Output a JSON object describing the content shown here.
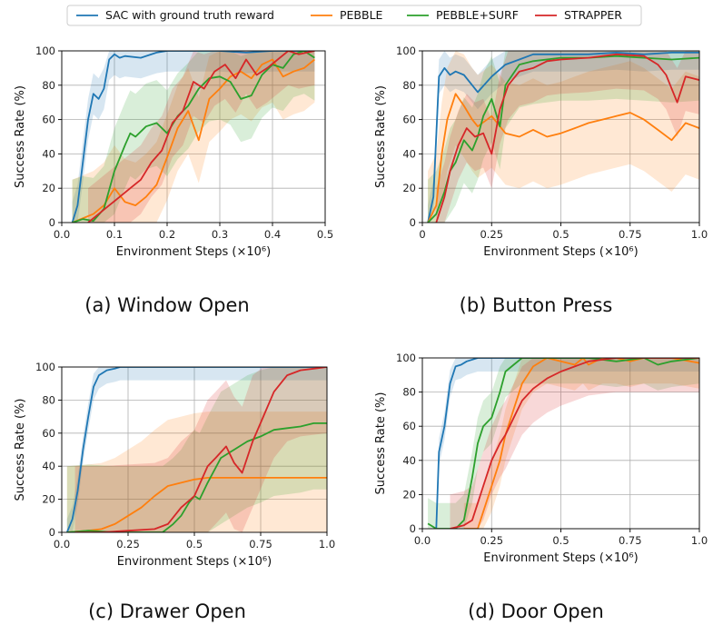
{
  "legend": {
    "items": [
      {
        "label": "SAC with ground truth reward",
        "color": "#1f77b4"
      },
      {
        "label": "PEBBLE",
        "color": "#ff7f0e"
      },
      {
        "label": "PEBBLE+SURF",
        "color": "#2ca02c"
      },
      {
        "label": "STRAPPER",
        "color": "#d62728"
      }
    ]
  },
  "chart_data": [
    {
      "type": "line",
      "caption": "(a) Window Open",
      "xlabel": "Environment Steps (×10⁶)",
      "ylabel": "Success Rate (%)",
      "xlim": [
        0,
        0.5
      ],
      "ylim": [
        0,
        100
      ],
      "xticks": [
        "0.0",
        "0.1",
        "0.2",
        "0.3",
        "0.4",
        "0.5"
      ],
      "xtick_values": [
        0,
        0.1,
        0.2,
        0.3,
        0.4,
        0.5
      ],
      "yticks": [
        "0",
        "20",
        "40",
        "60",
        "80",
        "100"
      ],
      "ytick_values": [
        0,
        20,
        40,
        60,
        80,
        100
      ],
      "grid": true,
      "series": [
        {
          "name": "SAC with ground truth reward",
          "color": "#1f77b4",
          "x": [
            0.02,
            0.03,
            0.04,
            0.05,
            0.06,
            0.07,
            0.08,
            0.09,
            0.1,
            0.11,
            0.12,
            0.15,
            0.18,
            0.2,
            0.25,
            0.3,
            0.35,
            0.4,
            0.45,
            0.48
          ],
          "y": [
            0,
            10,
            35,
            60,
            75,
            72,
            78,
            95,
            98,
            96,
            97,
            96,
            99,
            100,
            100,
            100,
            99,
            100,
            100,
            100
          ],
          "band": 12
        },
        {
          "name": "PEBBLE",
          "color": "#ff7f0e",
          "x": [
            0.02,
            0.06,
            0.08,
            0.1,
            0.12,
            0.14,
            0.16,
            0.18,
            0.2,
            0.22,
            0.24,
            0.26,
            0.28,
            0.3,
            0.32,
            0.34,
            0.36,
            0.38,
            0.4,
            0.42,
            0.44,
            0.46,
            0.48
          ],
          "y": [
            0,
            5,
            10,
            20,
            12,
            10,
            15,
            22,
            38,
            55,
            65,
            48,
            72,
            78,
            85,
            88,
            84,
            92,
            95,
            85,
            88,
            90,
            95
          ],
          "band": 25
        },
        {
          "name": "PEBBLE+SURF",
          "color": "#2ca02c",
          "x": [
            0.02,
            0.04,
            0.06,
            0.08,
            0.1,
            0.12,
            0.13,
            0.14,
            0.16,
            0.18,
            0.2,
            0.22,
            0.24,
            0.26,
            0.28,
            0.3,
            0.32,
            0.34,
            0.36,
            0.38,
            0.4,
            0.42,
            0.44,
            0.46,
            0.48
          ],
          "y": [
            0,
            2,
            1,
            8,
            30,
            45,
            52,
            50,
            56,
            58,
            52,
            62,
            68,
            78,
            84,
            85,
            82,
            72,
            74,
            86,
            92,
            90,
            98,
            100,
            96
          ],
          "band": 25
        },
        {
          "name": "STRAPPER",
          "color": "#d62728",
          "x": [
            0.05,
            0.07,
            0.09,
            0.11,
            0.13,
            0.15,
            0.17,
            0.19,
            0.21,
            0.23,
            0.25,
            0.27,
            0.29,
            0.31,
            0.33,
            0.35,
            0.37,
            0.39,
            0.41,
            0.43,
            0.45,
            0.48
          ],
          "y": [
            0,
            5,
            10,
            15,
            20,
            25,
            35,
            42,
            58,
            65,
            82,
            78,
            88,
            92,
            84,
            95,
            86,
            90,
            95,
            100,
            98,
            100
          ],
          "band": 20
        }
      ]
    },
    {
      "type": "line",
      "caption": "(b) Button Press",
      "xlabel": "Environment Steps (×10⁶)",
      "ylabel": "Success Rate (%)",
      "xlim": [
        0,
        1.0
      ],
      "ylim": [
        0,
        100
      ],
      "xticks": [
        "0",
        "0.25",
        "0.5",
        "0.75",
        "1.0"
      ],
      "xtick_values": [
        0,
        0.25,
        0.5,
        0.75,
        1.0
      ],
      "yticks": [
        "0",
        "20",
        "40",
        "60",
        "80",
        "100"
      ],
      "ytick_values": [
        0,
        20,
        40,
        60,
        80,
        100
      ],
      "grid": true,
      "series": [
        {
          "name": "SAC with ground truth reward",
          "color": "#1f77b4",
          "x": [
            0.02,
            0.04,
            0.06,
            0.08,
            0.1,
            0.12,
            0.15,
            0.18,
            0.2,
            0.25,
            0.3,
            0.35,
            0.4,
            0.5,
            0.6,
            0.7,
            0.8,
            0.9,
            1.0
          ],
          "y": [
            0,
            15,
            85,
            90,
            86,
            88,
            86,
            80,
            76,
            85,
            92,
            95,
            98,
            98,
            98,
            99,
            98,
            99,
            99
          ],
          "band": 10
        },
        {
          "name": "PEBBLE",
          "color": "#ff7f0e",
          "x": [
            0.02,
            0.05,
            0.07,
            0.09,
            0.12,
            0.15,
            0.18,
            0.2,
            0.25,
            0.3,
            0.35,
            0.4,
            0.45,
            0.5,
            0.55,
            0.6,
            0.65,
            0.7,
            0.75,
            0.8,
            0.85,
            0.9,
            0.95,
            1.0
          ],
          "y": [
            0,
            10,
            40,
            60,
            75,
            68,
            60,
            56,
            62,
            52,
            50,
            54,
            50,
            52,
            55,
            58,
            60,
            62,
            64,
            60,
            54,
            48,
            58,
            55
          ],
          "band": 30
        },
        {
          "name": "PEBBLE+SURF",
          "color": "#2ca02c",
          "x": [
            0.02,
            0.05,
            0.08,
            0.1,
            0.12,
            0.15,
            0.18,
            0.2,
            0.22,
            0.25,
            0.28,
            0.3,
            0.35,
            0.4,
            0.5,
            0.6,
            0.7,
            0.8,
            0.9,
            1.0
          ],
          "y": [
            0,
            5,
            18,
            30,
            35,
            48,
            42,
            50,
            62,
            72,
            56,
            80,
            92,
            94,
            96,
            96,
            97,
            96,
            95,
            96
          ],
          "band": 25
        },
        {
          "name": "STRAPPER",
          "color": "#d62728",
          "x": [
            0.05,
            0.08,
            0.1,
            0.13,
            0.16,
            0.19,
            0.22,
            0.25,
            0.28,
            0.31,
            0.35,
            0.4,
            0.45,
            0.5,
            0.6,
            0.7,
            0.8,
            0.85,
            0.88,
            0.92,
            0.95,
            1.0
          ],
          "y": [
            0,
            15,
            30,
            45,
            55,
            50,
            52,
            40,
            66,
            80,
            88,
            90,
            94,
            95,
            96,
            98,
            97,
            92,
            86,
            70,
            85,
            83
          ],
          "band": 20
        }
      ]
    },
    {
      "type": "line",
      "caption": "(c) Drawer Open",
      "xlabel": "Environment Steps (×10⁶)",
      "ylabel": "Success Rate (%)",
      "xlim": [
        0,
        1.0
      ],
      "ylim": [
        0,
        100
      ],
      "xticks": [
        "0.0",
        "0.25",
        "0.5",
        "0.75",
        "1.0"
      ],
      "xtick_values": [
        0,
        0.25,
        0.5,
        0.75,
        1.0
      ],
      "yticks": [
        "0",
        "20",
        "40",
        "60",
        "80",
        "100"
      ],
      "ytick_values": [
        0,
        20,
        40,
        60,
        80,
        100
      ],
      "grid": true,
      "series": [
        {
          "name": "SAC with ground truth reward",
          "color": "#1f77b4",
          "x": [
            0.02,
            0.04,
            0.06,
            0.08,
            0.1,
            0.12,
            0.14,
            0.17,
            0.2,
            0.22,
            0.3,
            0.4,
            0.5,
            0.6,
            0.7,
            0.8,
            0.9,
            1.0
          ],
          "y": [
            0,
            8,
            25,
            50,
            70,
            88,
            95,
            98,
            99,
            100,
            100,
            100,
            100,
            100,
            100,
            100,
            100,
            100
          ],
          "band": 8
        },
        {
          "name": "PEBBLE",
          "color": "#ff7f0e",
          "x": [
            0.02,
            0.1,
            0.15,
            0.2,
            0.25,
            0.3,
            0.35,
            0.4,
            0.45,
            0.5,
            0.55,
            0.6,
            0.7,
            0.8,
            0.9,
            1.0
          ],
          "y": [
            0,
            1,
            2,
            5,
            10,
            15,
            22,
            28,
            30,
            32,
            33,
            33,
            33,
            33,
            33,
            33
          ],
          "band": 40
        },
        {
          "name": "PEBBLE+SURF",
          "color": "#2ca02c",
          "x": [
            0.02,
            0.1,
            0.2,
            0.3,
            0.38,
            0.42,
            0.45,
            0.48,
            0.5,
            0.52,
            0.55,
            0.6,
            0.65,
            0.7,
            0.75,
            0.8,
            0.85,
            0.9,
            0.95,
            1.0
          ],
          "y": [
            0,
            1,
            0,
            0,
            0,
            5,
            10,
            18,
            22,
            20,
            30,
            45,
            50,
            55,
            58,
            62,
            63,
            64,
            66,
            66
          ],
          "band": 40
        },
        {
          "name": "STRAPPER",
          "color": "#d62728",
          "x": [
            0.05,
            0.15,
            0.25,
            0.35,
            0.4,
            0.45,
            0.5,
            0.55,
            0.58,
            0.62,
            0.65,
            0.68,
            0.72,
            0.76,
            0.8,
            0.85,
            0.9,
            0.95,
            1.0
          ],
          "y": [
            0,
            0,
            1,
            2,
            5,
            15,
            22,
            40,
            45,
            52,
            42,
            36,
            55,
            70,
            85,
            95,
            98,
            99,
            100
          ],
          "band": 40
        }
      ]
    },
    {
      "type": "line",
      "caption": "(d) Door Open",
      "xlabel": "Environment Steps (×10⁶)",
      "ylabel": "Success Rate (%)",
      "xlim": [
        0,
        1.0
      ],
      "ylim": [
        0,
        100
      ],
      "xticks": [
        "0.0",
        "0.25",
        "0.5",
        "0.75",
        "1.0"
      ],
      "xtick_values": [
        0,
        0.25,
        0.5,
        0.75,
        1.0
      ],
      "yticks": [
        "0",
        "20",
        "40",
        "60",
        "80",
        "100"
      ],
      "ytick_values": [
        0,
        20,
        40,
        60,
        80,
        100
      ],
      "grid": true,
      "series": [
        {
          "name": "SAC with ground truth reward",
          "color": "#1f77b4",
          "x": [
            0.05,
            0.06,
            0.08,
            0.1,
            0.12,
            0.14,
            0.16,
            0.2,
            0.3,
            0.4,
            0.5,
            0.6,
            0.7,
            0.8,
            0.9,
            1.0
          ],
          "y": [
            0,
            45,
            60,
            85,
            95,
            96,
            98,
            100,
            100,
            100,
            100,
            100,
            100,
            100,
            100,
            100
          ],
          "band": 8
        },
        {
          "name": "PEBBLE",
          "color": "#ff7f0e",
          "x": [
            0.15,
            0.2,
            0.22,
            0.25,
            0.28,
            0.3,
            0.33,
            0.36,
            0.4,
            0.45,
            0.5,
            0.55,
            0.58,
            0.6,
            0.65,
            0.7,
            0.75,
            0.8,
            0.9,
            1.0
          ],
          "y": [
            0,
            0,
            10,
            25,
            40,
            55,
            70,
            85,
            95,
            100,
            98,
            96,
            100,
            96,
            100,
            100,
            98,
            100,
            100,
            97
          ],
          "band": 15
        },
        {
          "name": "PEBBLE+SURF",
          "color": "#2ca02c",
          "x": [
            0.02,
            0.05,
            0.12,
            0.15,
            0.18,
            0.2,
            0.22,
            0.25,
            0.28,
            0.3,
            0.33,
            0.36,
            0.4,
            0.5,
            0.6,
            0.7,
            0.8,
            0.85,
            0.9,
            1.0
          ],
          "y": [
            3,
            0,
            0,
            5,
            30,
            50,
            60,
            65,
            80,
            92,
            96,
            100,
            100,
            100,
            100,
            98,
            100,
            96,
            98,
            100
          ],
          "band": 15
        },
        {
          "name": "STRAPPER",
          "color": "#d62728",
          "x": [
            0.1,
            0.15,
            0.18,
            0.2,
            0.22,
            0.25,
            0.28,
            0.3,
            0.33,
            0.36,
            0.4,
            0.45,
            0.5,
            0.55,
            0.6,
            0.7,
            0.8,
            0.9,
            1.0
          ],
          "y": [
            0,
            2,
            5,
            15,
            25,
            40,
            50,
            55,
            65,
            75,
            82,
            88,
            92,
            95,
            98,
            100,
            100,
            100,
            100
          ],
          "band": 20
        }
      ]
    }
  ]
}
